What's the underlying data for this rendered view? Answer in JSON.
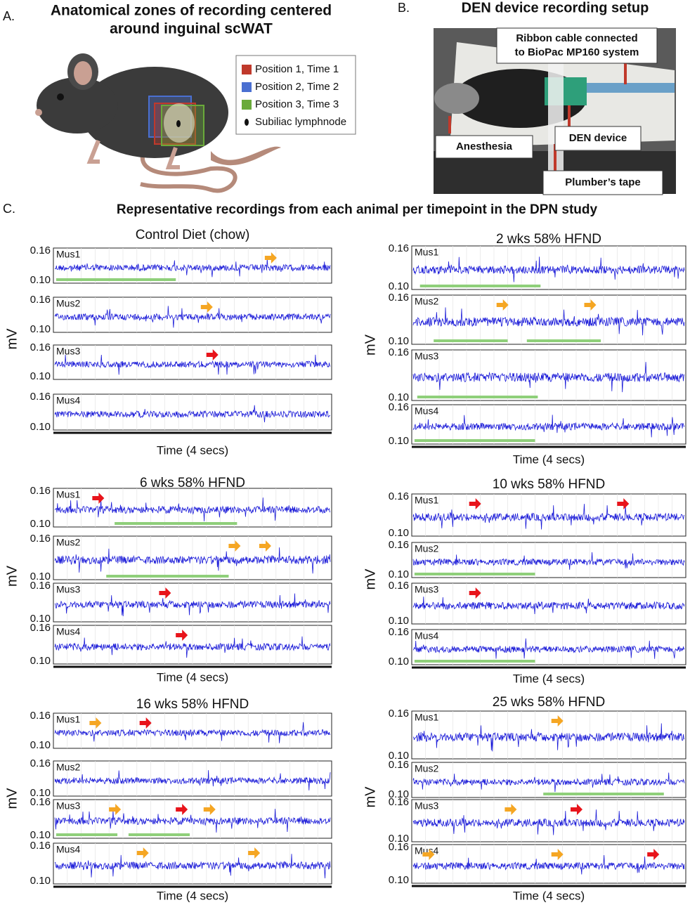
{
  "panel_a": {
    "letter": "A.",
    "title_lines": [
      "Anatomical zones of recording centered",
      "around inguinal scWAT"
    ],
    "legend": [
      {
        "label": "Position 1, Time 1",
        "color": "#c0392b"
      },
      {
        "label": "Position 2, Time 2",
        "color": "#4a6fd1"
      },
      {
        "label": "Position 3, Time 3",
        "color": "#6aaa3a"
      },
      {
        "label": "Subiliac lymphnode",
        "color": "#111111"
      }
    ]
  },
  "panel_b": {
    "letter": "B.",
    "title": "DEN device recording setup",
    "callouts": [
      [
        "Ribbon cable connected",
        "to BioPac MP160 system"
      ],
      [
        "Anesthesia"
      ],
      [
        "DEN device"
      ],
      [
        "Plumber’s tape"
      ]
    ]
  },
  "panel_c": {
    "letter": "C.",
    "title": "Representative recordings from each animal per timepoint in the DPN study",
    "y_label": "mV",
    "x_label": "Time (4 secs)",
    "yticks": [
      0.16,
      {
        "value": 0.1,
        "label": "0.10"
      }
    ],
    "groups": [
      {
        "title": "Control Diet (chow)",
        "traces": [
          "Mus1",
          "Mus2",
          "Mus3",
          "Mus4"
        ]
      },
      {
        "title": "2 wks 58% HFND",
        "traces": [
          "Mus1",
          "Mus2",
          "Mus3",
          "Mus4"
        ]
      },
      {
        "title": "6 wks 58% HFND",
        "traces": [
          "Mus1",
          "Mus2",
          "Mus3",
          "Mus4"
        ]
      },
      {
        "title": "10 wks 58% HFND",
        "traces": [
          "Mus1",
          "Mus2",
          "Mus3",
          "Mus4"
        ]
      },
      {
        "title": "16 wks 58% HFND",
        "traces": [
          "Mus1",
          "Mus2",
          "Mus3",
          "Mus4"
        ]
      },
      {
        "title": "25 wks 58% HFND",
        "traces": [
          "Mus1",
          "Mus2",
          "Mus3",
          "Mus4"
        ]
      }
    ]
  }
}
